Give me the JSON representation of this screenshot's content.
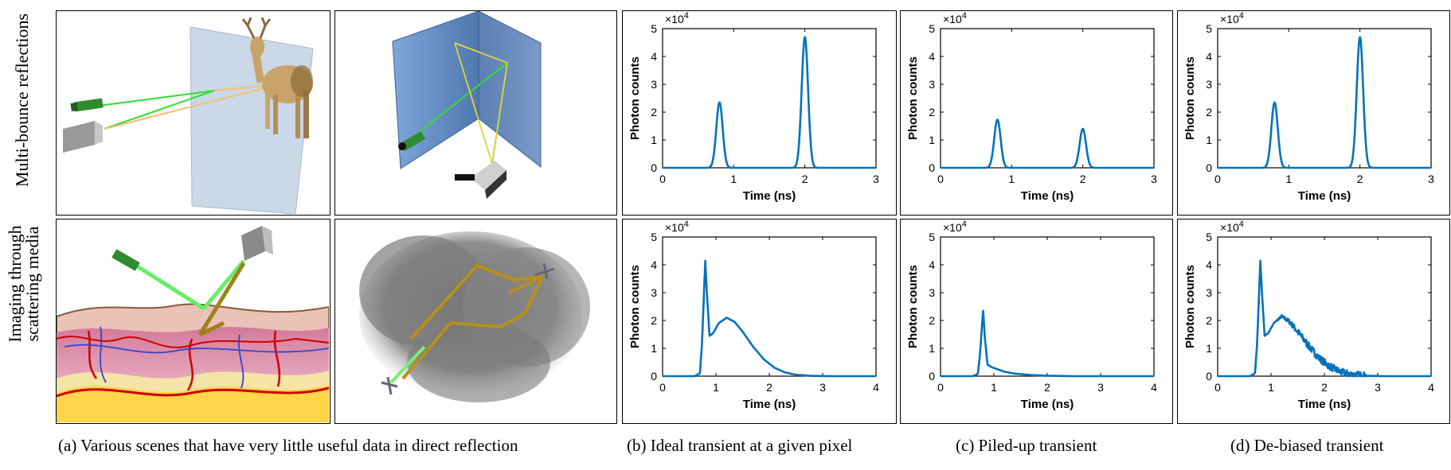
{
  "row_labels": {
    "top": "Multi-bounce reflections",
    "bottom_line1": "Imaging through",
    "bottom_line2": "scattering media"
  },
  "captions": {
    "a": "(a) Various scenes that have very little useful data in direct reflection",
    "b": "(b) Ideal transient at a given pixel",
    "c": "(c) Piled-up transient",
    "d": "(d) De-biased transient"
  },
  "colors": {
    "line": "#0072BD",
    "axis": "#000000"
  },
  "chart_data": [
    {
      "type": "line",
      "panel": "b-top",
      "xlabel": "Time (ns)",
      "ylabel": "Photon counts",
      "exponent": "×10",
      "exponent_power": "4",
      "xlim": [
        0,
        3
      ],
      "ylim": [
        0,
        50000
      ],
      "xticks": [
        0,
        1,
        2,
        3
      ],
      "yticks": [
        0,
        1,
        2,
        3,
        4,
        5
      ],
      "peaks": [
        {
          "center": 0.8,
          "height": 23500,
          "width": 0.045
        },
        {
          "center": 2.0,
          "height": 47000,
          "width": 0.045
        }
      ]
    },
    {
      "type": "line",
      "panel": "c-top",
      "xlabel": "Time (ns)",
      "ylabel": "Photon counts",
      "exponent": "×10",
      "exponent_power": "4",
      "xlim": [
        0,
        3
      ],
      "ylim": [
        0,
        50000
      ],
      "xticks": [
        0,
        1,
        2,
        3
      ],
      "yticks": [
        0,
        1,
        2,
        3,
        4,
        5
      ],
      "peaks": [
        {
          "center": 0.8,
          "height": 17300,
          "width": 0.045
        },
        {
          "center": 2.0,
          "height": 14000,
          "width": 0.045
        }
      ]
    },
    {
      "type": "line",
      "panel": "d-top",
      "xlabel": "Time (ns)",
      "ylabel": "Photon counts",
      "exponent": "×10",
      "exponent_power": "4",
      "xlim": [
        0,
        3
      ],
      "ylim": [
        0,
        50000
      ],
      "xticks": [
        0,
        1,
        2,
        3
      ],
      "yticks": [
        0,
        1,
        2,
        3,
        4,
        5
      ],
      "peaks": [
        {
          "center": 0.8,
          "height": 23500,
          "width": 0.045
        },
        {
          "center": 2.0,
          "height": 47000,
          "width": 0.045
        }
      ]
    },
    {
      "type": "line",
      "panel": "b-bottom",
      "xlabel": "Time (ns)",
      "ylabel": "Photon counts",
      "exponent": "×10",
      "exponent_power": "4",
      "xlim": [
        0,
        4
      ],
      "ylim": [
        0,
        50000
      ],
      "xticks": [
        0,
        1,
        2,
        3,
        4
      ],
      "yticks": [
        0,
        1,
        2,
        3,
        4,
        5
      ],
      "x": [
        0,
        0.6,
        0.7,
        0.74,
        0.78,
        0.8,
        0.83,
        0.88,
        0.95,
        1.05,
        1.2,
        1.35,
        1.5,
        1.7,
        1.9,
        2.1,
        2.3,
        2.5,
        2.8,
        3.2,
        4.0
      ],
      "y": [
        0,
        0,
        1000,
        12000,
        32000,
        41500,
        30000,
        14500,
        15500,
        19000,
        21000,
        19500,
        16000,
        10500,
        6000,
        3000,
        1300,
        500,
        100,
        0,
        0
      ]
    },
    {
      "type": "line",
      "panel": "c-bottom",
      "xlabel": "Time (ns)",
      "ylabel": "Photon counts",
      "exponent": "×10",
      "exponent_power": "4",
      "xlim": [
        0,
        4
      ],
      "ylim": [
        0,
        50000
      ],
      "xticks": [
        0,
        1,
        2,
        3,
        4
      ],
      "yticks": [
        0,
        1,
        2,
        3,
        4,
        5
      ],
      "x": [
        0,
        0.6,
        0.7,
        0.74,
        0.78,
        0.8,
        0.83,
        0.88,
        0.95,
        1.05,
        1.2,
        1.4,
        1.7,
        2.0,
        2.5,
        4.0
      ],
      "y": [
        0,
        0,
        800,
        8000,
        19000,
        23500,
        14000,
        4200,
        3300,
        2600,
        1600,
        900,
        400,
        150,
        0,
        0
      ]
    },
    {
      "type": "line",
      "panel": "d-bottom",
      "xlabel": "Time (ns)",
      "ylabel": "Photon counts",
      "exponent": "×10",
      "exponent_power": "4",
      "xlim": [
        0,
        4
      ],
      "ylim": [
        0,
        50000
      ],
      "xticks": [
        0,
        1,
        2,
        3,
        4
      ],
      "yticks": [
        0,
        1,
        2,
        3,
        4,
        5
      ],
      "noisy": true,
      "x": [
        0,
        0.6,
        0.7,
        0.74,
        0.78,
        0.8,
        0.83,
        0.88,
        0.95,
        1.05,
        1.2,
        1.35,
        1.5,
        1.7,
        1.9,
        2.1,
        2.3,
        2.5,
        2.8,
        3.2,
        4.0
      ],
      "y": [
        0,
        0,
        1000,
        12000,
        32000,
        41500,
        30000,
        14500,
        15500,
        19000,
        21500,
        19500,
        16000,
        11000,
        6500,
        3500,
        1500,
        600,
        100,
        0,
        0
      ]
    }
  ]
}
